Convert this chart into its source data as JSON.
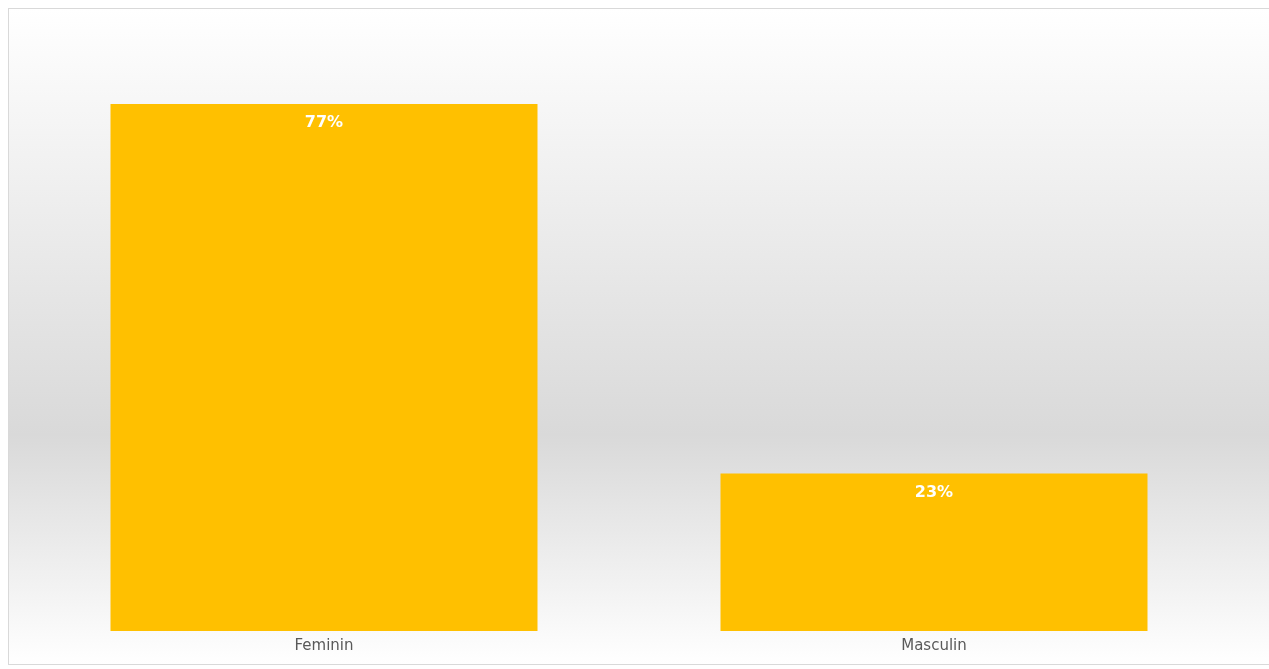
{
  "chart_data": {
    "type": "bar",
    "categories": [
      "Feminin",
      "Masculin"
    ],
    "values": [
      77,
      23
    ],
    "value_labels": [
      "77%",
      "23%"
    ],
    "color": "#ffc000",
    "grid": false,
    "legend": false
  }
}
